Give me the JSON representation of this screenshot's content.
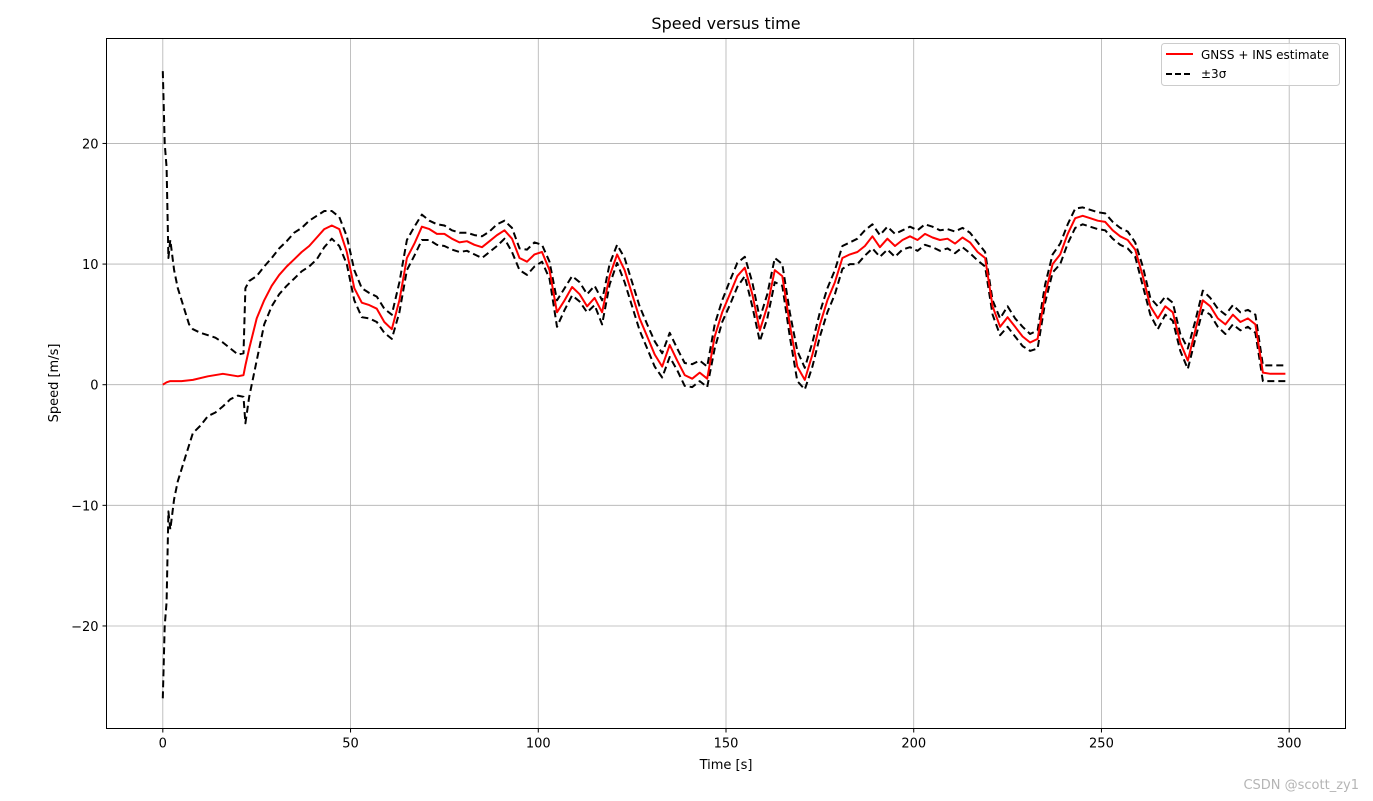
{
  "chart_data": {
    "type": "line",
    "title": "Speed versus time",
    "xlabel": "Time [s]",
    "ylabel": "Speed [m/s]",
    "xlim": [
      -15,
      315
    ],
    "ylim": [
      -28.5,
      28.7
    ],
    "xticks": [
      0,
      50,
      100,
      150,
      200,
      250,
      300
    ],
    "yticks": [
      -20,
      -10,
      0,
      10,
      20
    ],
    "ytick_labels": [
      "−20",
      "−10",
      "0",
      "10",
      "20"
    ],
    "grid": true,
    "legend_position": "top-right",
    "series": [
      {
        "name": "GNSS + INS estimate",
        "color": "#ff0000",
        "style": "solid",
        "x": [
          0,
          1,
          2,
          5,
          8,
          12,
          16,
          20,
          21.5,
          22,
          23,
          25,
          27,
          29,
          31,
          33,
          35,
          37,
          39,
          41,
          43,
          45,
          47,
          49,
          51,
          53,
          55,
          57,
          59,
          61,
          63,
          65,
          67,
          69,
          71,
          73,
          75,
          77,
          79,
          81,
          83,
          85,
          87,
          89,
          91,
          93,
          95,
          97,
          99,
          101,
          103,
          105,
          107,
          109,
          111,
          113,
          115,
          117,
          119,
          121,
          123,
          125,
          127,
          129,
          131,
          133,
          135,
          137,
          139,
          141,
          143,
          145,
          147,
          149,
          151,
          153,
          155,
          157,
          159,
          161,
          163,
          165,
          167,
          169,
          171,
          173,
          175,
          177,
          179,
          181,
          183,
          185,
          187,
          189,
          191,
          193,
          195,
          197,
          199,
          201,
          203,
          205,
          207,
          209,
          211,
          213,
          215,
          217,
          219,
          221,
          223,
          225,
          227,
          229,
          231,
          233,
          235,
          237,
          239,
          241,
          243,
          245,
          247,
          249,
          251,
          253,
          255,
          257,
          259,
          261,
          263,
          265,
          267,
          269,
          271,
          273,
          275,
          277,
          279,
          281,
          283,
          285,
          287,
          289,
          291,
          293,
          295,
          297,
          299
        ],
        "y": [
          0,
          0.2,
          0.3,
          0.3,
          0.4,
          0.7,
          0.9,
          0.7,
          0.8,
          1.6,
          3.0,
          5.5,
          7.0,
          8.2,
          9.1,
          9.8,
          10.4,
          11.0,
          11.5,
          12.2,
          12.9,
          13.2,
          12.9,
          11.0,
          8.0,
          6.8,
          6.6,
          6.3,
          5.2,
          4.6,
          7.0,
          10.5,
          11.7,
          13.1,
          12.9,
          12.5,
          12.5,
          12.1,
          11.8,
          11.9,
          11.6,
          11.4,
          11.9,
          12.4,
          12.8,
          12.1,
          10.5,
          10.2,
          10.8,
          11.0,
          9.5,
          6.0,
          7.0,
          8.1,
          7.5,
          6.5,
          7.2,
          6.0,
          9.0,
          10.8,
          9.5,
          7.5,
          5.5,
          4.0,
          2.5,
          1.5,
          3.3,
          2.0,
          0.8,
          0.5,
          1.0,
          0.5,
          4.0,
          6.0,
          7.5,
          9.0,
          9.7,
          7.5,
          4.5,
          6.5,
          9.5,
          9.0,
          5.0,
          1.5,
          0.4,
          2.5,
          5.0,
          7.0,
          8.5,
          10.5,
          10.8,
          11.0,
          11.5,
          12.3,
          11.4,
          12.1,
          11.5,
          12.0,
          12.3,
          12.0,
          12.5,
          12.2,
          12.0,
          12.1,
          11.7,
          12.2,
          11.8,
          11.0,
          10.5,
          6.5,
          4.8,
          5.6,
          4.8,
          4.0,
          3.5,
          3.8,
          7.5,
          10.0,
          10.8,
          12.5,
          13.8,
          14.0,
          13.8,
          13.6,
          13.5,
          12.8,
          12.3,
          12.0,
          11.2,
          9.0,
          6.5,
          5.5,
          6.5,
          6.0,
          3.5,
          2.0,
          4.5,
          7.0,
          6.5,
          5.5,
          5.0,
          5.8,
          5.2,
          5.5,
          5.0,
          1.0,
          0.9,
          0.9,
          0.9
        ]
      },
      {
        "name": "±3σ",
        "color": "#000000",
        "style": "dashed",
        "x": [
          0,
          0.5,
          1,
          1.5,
          2,
          3,
          4,
          5,
          6,
          7,
          8,
          10,
          12,
          14,
          16,
          18,
          20,
          21.5,
          22,
          23,
          25,
          27,
          29,
          31,
          33,
          35,
          37,
          39,
          41,
          43,
          45,
          47,
          49,
          51,
          53,
          55,
          57,
          59,
          61,
          63,
          65,
          67,
          69,
          71,
          73,
          75,
          77,
          79,
          81,
          83,
          85,
          87,
          89,
          91,
          93,
          95,
          97,
          99,
          101,
          103,
          105,
          107,
          109,
          111,
          113,
          115,
          117,
          119,
          121,
          123,
          125,
          127,
          129,
          131,
          133,
          135,
          137,
          139,
          141,
          143,
          145,
          147,
          149,
          151,
          153,
          155,
          157,
          159,
          161,
          163,
          165,
          167,
          169,
          171,
          173,
          175,
          177,
          179,
          181,
          183,
          185,
          187,
          189,
          191,
          193,
          195,
          197,
          199,
          201,
          203,
          205,
          207,
          209,
          211,
          213,
          215,
          217,
          219,
          221,
          223,
          225,
          227,
          229,
          231,
          233,
          235,
          237,
          239,
          241,
          243,
          245,
          247,
          249,
          251,
          253,
          255,
          257,
          259,
          261,
          263,
          265,
          267,
          269,
          271,
          273,
          275,
          277,
          279,
          281,
          283,
          285,
          287,
          289,
          291,
          293,
          295,
          297,
          299
        ],
        "upper": [
          26.0,
          20.0,
          18.0,
          10.5,
          12.0,
          9.5,
          8.0,
          7.0,
          6.0,
          5.0,
          4.6,
          4.3,
          4.1,
          3.9,
          3.5,
          3.0,
          2.5,
          2.6,
          8.0,
          8.6,
          9.0,
          9.8,
          10.5,
          11.3,
          11.9,
          12.6,
          13.0,
          13.6,
          14.0,
          14.4,
          14.4,
          13.9,
          12.3,
          9.5,
          8.0,
          7.6,
          7.3,
          6.3,
          5.8,
          8.5,
          12.0,
          13.1,
          14.1,
          13.6,
          13.3,
          13.2,
          12.8,
          12.6,
          12.6,
          12.4,
          12.3,
          12.7,
          13.3,
          13.6,
          13.0,
          11.3,
          11.2,
          11.8,
          11.6,
          10.2,
          7.0,
          8.0,
          9.0,
          8.5,
          7.5,
          8.2,
          7.0,
          10.0,
          11.6,
          10.5,
          8.5,
          6.5,
          5.0,
          3.6,
          2.6,
          4.3,
          3.0,
          1.8,
          1.7,
          2.0,
          1.5,
          5.0,
          7.0,
          8.6,
          10.1,
          10.6,
          8.5,
          5.5,
          7.5,
          10.5,
          10.0,
          6.0,
          2.8,
          1.4,
          3.5,
          6.0,
          8.0,
          9.5,
          11.5,
          11.8,
          12.1,
          12.8,
          13.3,
          12.4,
          13.1,
          12.5,
          12.8,
          13.1,
          12.8,
          13.3,
          13.1,
          12.8,
          12.9,
          12.7,
          13.0,
          12.6,
          11.8,
          11.0,
          7.0,
          5.5,
          6.5,
          5.5,
          4.8,
          4.2,
          4.5,
          8.3,
          10.8,
          11.7,
          13.3,
          14.6,
          14.7,
          14.5,
          14.3,
          14.2,
          13.5,
          13.0,
          12.7,
          11.8,
          9.8,
          7.2,
          6.5,
          7.3,
          6.8,
          4.2,
          3.0,
          5.3,
          7.8,
          7.2,
          6.3,
          5.8,
          6.6,
          6.0,
          6.2,
          5.8,
          1.6,
          1.6,
          1.6,
          1.6
        ],
        "lower": [
          -26.0,
          -20.0,
          -18.0,
          -10.5,
          -12.0,
          -9.5,
          -8.0,
          -7.0,
          -6.0,
          -5.0,
          -4.0,
          -3.4,
          -2.6,
          -2.3,
          -1.8,
          -1.2,
          -0.9,
          -1.0,
          -3.2,
          -1.0,
          2.0,
          5.0,
          6.5,
          7.5,
          8.2,
          8.8,
          9.4,
          9.8,
          10.4,
          11.4,
          12.1,
          11.5,
          10.0,
          7.0,
          5.6,
          5.5,
          5.2,
          4.3,
          3.8,
          6.0,
          9.5,
          10.7,
          12.0,
          12.0,
          11.6,
          11.5,
          11.2,
          11.0,
          11.1,
          10.8,
          10.5,
          11.0,
          11.5,
          12.1,
          11.0,
          9.5,
          9.1,
          9.8,
          10.2,
          8.8,
          4.8,
          6.2,
          7.4,
          6.9,
          6.0,
          6.6,
          5.0,
          8.3,
          10.1,
          8.5,
          6.5,
          4.5,
          3.0,
          1.5,
          0.6,
          2.3,
          1.2,
          -0.1,
          -0.2,
          0.3,
          -0.2,
          3.0,
          5.2,
          6.6,
          8.1,
          9.0,
          6.5,
          3.6,
          5.5,
          8.5,
          8.2,
          4.0,
          0.3,
          -0.4,
          1.5,
          4.0,
          6.0,
          7.5,
          9.6,
          10.0,
          10.0,
          10.7,
          11.3,
          10.6,
          11.2,
          10.6,
          11.2,
          11.4,
          11.1,
          11.6,
          11.4,
          11.1,
          11.3,
          10.9,
          11.4,
          10.9,
          10.3,
          9.8,
          5.8,
          4.1,
          4.8,
          4.0,
          3.2,
          2.8,
          3.0,
          6.8,
          9.3,
          10.0,
          11.7,
          13.0,
          13.3,
          13.1,
          12.9,
          12.8,
          12.1,
          11.6,
          11.3,
          10.6,
          8.2,
          5.8,
          4.6,
          5.8,
          5.3,
          2.8,
          1.3,
          3.8,
          6.2,
          5.8,
          4.8,
          4.2,
          5.0,
          4.5,
          4.8,
          4.3,
          0.3,
          0.3,
          0.3,
          0.3
        ]
      }
    ]
  },
  "watermark": "CSDN @scott_zy1"
}
